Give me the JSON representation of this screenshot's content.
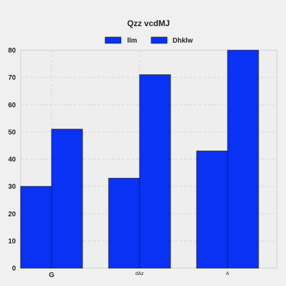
{
  "chart_data": {
    "type": "bar",
    "title": "Qzz vcdMJ",
    "xlabel": "",
    "ylabel": "",
    "categories": [
      "G",
      "dAz",
      "A"
    ],
    "series": [
      {
        "name": "llm",
        "values": [
          30,
          33,
          43
        ],
        "color": "#0a32f5"
      },
      {
        "name": "Dhklw",
        "values": [
          51,
          71,
          80
        ],
        "color": "#0a32f5"
      }
    ],
    "ylim": [
      0,
      80
    ],
    "yticks": [
      0,
      10,
      20,
      30,
      40,
      50,
      60,
      70,
      80
    ],
    "grid": true,
    "legend_position": "top-center"
  }
}
